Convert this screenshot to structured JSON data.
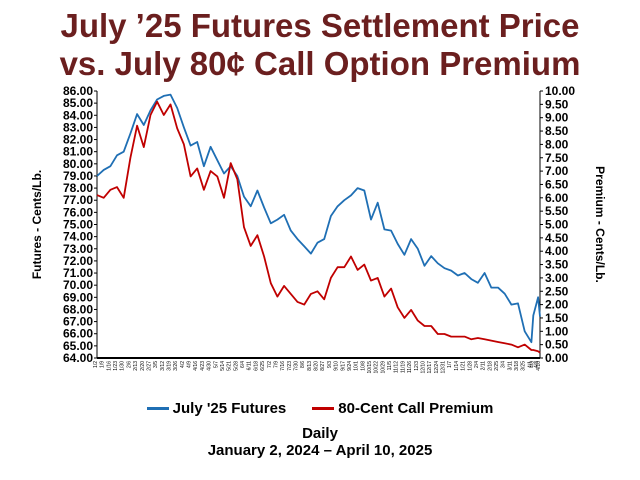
{
  "title_line1": "July ’25 Futures Settlement Price",
  "title_line2": "vs. July 80¢ Call Option Premium",
  "colors": {
    "title": "#6b1f1f",
    "futures": "#1f6fb4",
    "premium": "#c00000"
  },
  "legend": {
    "futures": "July '25 Futures",
    "premium": "80-Cent Call Premium"
  },
  "xlabel": "Daily",
  "subtitle": "January 2, 2024 – April 10, 2025",
  "chart_data": {
    "type": "line",
    "title": "July ’25 Futures Settlement Price vs. July 80¢ Call Option Premium",
    "xlabel": "Daily",
    "ylabel": "Futures - Cents/Lb.",
    "y2label": "Premium - Cents/Lb.",
    "ylim": [
      64.0,
      86.0
    ],
    "y2lim": [
      0.0,
      10.0
    ],
    "yticks": [
      "64.00",
      "65.00",
      "66.00",
      "67.00",
      "68.00",
      "69.00",
      "70.00",
      "71.00",
      "72.00",
      "73.00",
      "74.00",
      "75.00",
      "76.00",
      "77.00",
      "78.00",
      "79.00",
      "80.00",
      "81.00",
      "82.00",
      "83.00",
      "84.00",
      "85.00",
      "86.00"
    ],
    "y2ticks": [
      "0.00",
      "0.50",
      "1.00",
      "1.50",
      "2.00",
      "2.50",
      "3.00",
      "3.50",
      "4.00",
      "4.50",
      "5.00",
      "5.50",
      "6.00",
      "6.50",
      "7.00",
      "7.50",
      "8.00",
      "8.50",
      "9.00",
      "9.50",
      "10.00"
    ],
    "xlim": [
      "2024-01-02",
      "2025-04-10"
    ],
    "legend_position": "bottom",
    "grid": false,
    "series": [
      {
        "name": "July '25 Futures",
        "x": [
          "2024-01-02",
          "2024-01-09",
          "2024-01-16",
          "2024-01-23",
          "2024-01-30",
          "2024-02-06",
          "2024-02-13",
          "2024-02-20",
          "2024-02-27",
          "2024-03-05",
          "2024-03-12",
          "2024-03-19",
          "2024-03-26",
          "2024-04-02",
          "2024-04-09",
          "2024-04-16",
          "2024-04-23",
          "2024-04-30",
          "2024-05-07",
          "2024-05-14",
          "2024-05-21",
          "2024-05-28",
          "2024-06-04",
          "2024-06-11",
          "2024-06-18",
          "2024-06-25",
          "2024-07-02",
          "2024-07-09",
          "2024-07-16",
          "2024-07-23",
          "2024-07-30",
          "2024-08-06",
          "2024-08-13",
          "2024-08-20",
          "2024-08-27",
          "2024-09-03",
          "2024-09-10",
          "2024-09-17",
          "2024-09-24",
          "2024-10-01",
          "2024-10-08",
          "2024-10-15",
          "2024-10-22",
          "2024-10-29",
          "2024-11-05",
          "2024-11-12",
          "2024-11-19",
          "2024-11-26",
          "2024-12-03",
          "2024-12-10",
          "2024-12-17",
          "2024-12-24",
          "2024-12-31",
          "2025-01-07",
          "2025-01-14",
          "2025-01-21",
          "2025-01-28",
          "2025-02-04",
          "2025-02-11",
          "2025-02-18",
          "2025-02-25",
          "2025-03-04",
          "2025-03-11",
          "2025-03-18",
          "2025-03-25",
          "2025-04-01",
          "2025-04-03",
          "2025-04-08",
          "2025-04-10"
        ],
        "values": [
          79.0,
          79.5,
          79.8,
          80.7,
          81.0,
          82.5,
          84.1,
          83.2,
          84.4,
          85.3,
          85.6,
          85.7,
          84.6,
          83.0,
          81.5,
          81.8,
          79.8,
          81.4,
          80.3,
          79.2,
          79.8,
          79.0,
          77.3,
          76.5,
          77.8,
          76.4,
          75.1,
          75.4,
          75.8,
          74.5,
          73.8,
          73.2,
          72.6,
          73.5,
          73.8,
          75.7,
          76.5,
          77.0,
          77.4,
          78.0,
          77.8,
          75.4,
          76.8,
          74.6,
          74.5,
          73.4,
          72.5,
          73.8,
          73.0,
          71.6,
          72.4,
          71.8,
          71.4,
          71.2,
          70.8,
          71.0,
          70.5,
          70.2,
          71.0,
          69.8,
          69.8,
          69.3,
          68.4,
          68.5,
          66.2,
          65.3,
          67.5,
          69.0,
          67.4
        ]
      },
      {
        "name": "80-Cent Call Premium",
        "x": [
          "2024-01-02",
          "2024-01-09",
          "2024-01-16",
          "2024-01-23",
          "2024-01-30",
          "2024-02-06",
          "2024-02-13",
          "2024-02-20",
          "2024-02-27",
          "2024-03-05",
          "2024-03-12",
          "2024-03-19",
          "2024-03-26",
          "2024-04-02",
          "2024-04-09",
          "2024-04-16",
          "2024-04-23",
          "2024-04-30",
          "2024-05-07",
          "2024-05-14",
          "2024-05-21",
          "2024-05-28",
          "2024-06-04",
          "2024-06-11",
          "2024-06-18",
          "2024-06-25",
          "2024-07-02",
          "2024-07-09",
          "2024-07-16",
          "2024-07-23",
          "2024-07-30",
          "2024-08-06",
          "2024-08-13",
          "2024-08-20",
          "2024-08-27",
          "2024-09-03",
          "2024-09-10",
          "2024-09-17",
          "2024-09-24",
          "2024-10-01",
          "2024-10-08",
          "2024-10-15",
          "2024-10-22",
          "2024-10-29",
          "2024-11-05",
          "2024-11-12",
          "2024-11-19",
          "2024-11-26",
          "2024-12-03",
          "2024-12-10",
          "2024-12-17",
          "2024-12-24",
          "2024-12-31",
          "2025-01-07",
          "2025-01-14",
          "2025-01-21",
          "2025-01-28",
          "2025-02-04",
          "2025-02-11",
          "2025-02-18",
          "2025-02-25",
          "2025-03-04",
          "2025-03-11",
          "2025-03-18",
          "2025-03-25",
          "2025-04-01",
          "2025-04-03",
          "2025-04-08",
          "2025-04-10"
        ],
        "values": [
          6.1,
          6.0,
          6.3,
          6.4,
          6.0,
          7.5,
          8.7,
          7.9,
          9.1,
          9.6,
          9.1,
          9.5,
          8.6,
          8.0,
          6.8,
          7.1,
          6.3,
          7.0,
          6.8,
          6.0,
          7.3,
          6.7,
          4.9,
          4.2,
          4.6,
          3.8,
          2.8,
          2.3,
          2.7,
          2.4,
          2.1,
          2.0,
          2.4,
          2.5,
          2.2,
          3.0,
          3.4,
          3.4,
          3.8,
          3.3,
          3.5,
          2.9,
          3.0,
          2.3,
          2.6,
          1.9,
          1.5,
          1.8,
          1.4,
          1.2,
          1.2,
          0.9,
          0.9,
          0.8,
          0.8,
          0.8,
          0.7,
          0.75,
          0.7,
          0.65,
          0.6,
          0.55,
          0.5,
          0.4,
          0.5,
          0.3,
          0.3,
          0.25,
          0.2
        ]
      }
    ]
  }
}
